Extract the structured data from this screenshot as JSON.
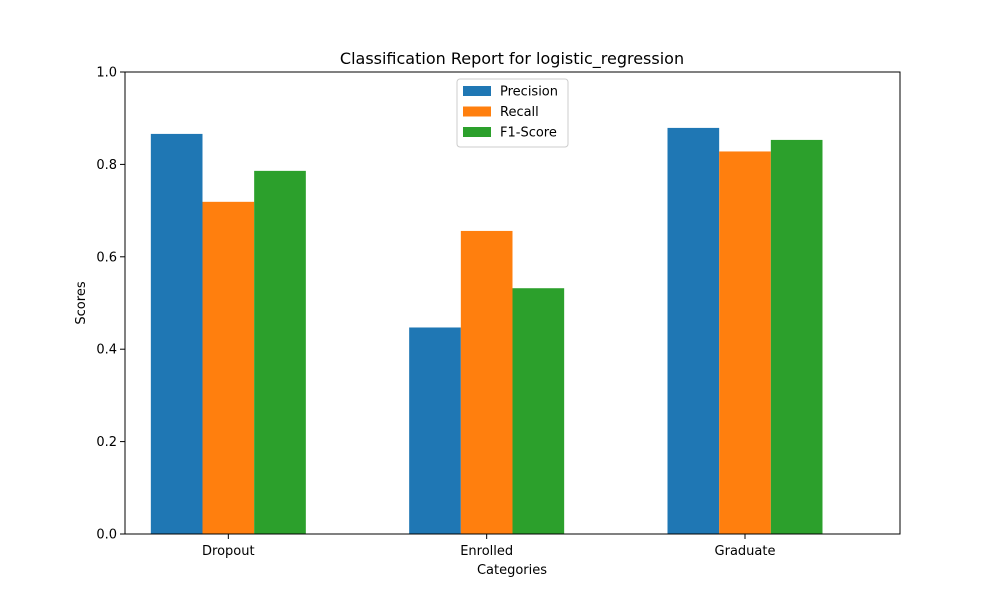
{
  "chart_data": {
    "type": "bar",
    "title": "Classification Report for logistic_regression",
    "xlabel": "Categories",
    "ylabel": "Scores",
    "categories": [
      "Dropout",
      "Enrolled",
      "Graduate"
    ],
    "series": [
      {
        "name": "Precision",
        "color": "#1f77b4",
        "values": [
          0.866,
          0.447,
          0.879
        ]
      },
      {
        "name": "Recall",
        "color": "#ff7f0e",
        "values": [
          0.719,
          0.656,
          0.828
        ]
      },
      {
        "name": "F1-Score",
        "color": "#2ca02c",
        "values": [
          0.786,
          0.532,
          0.853
        ]
      }
    ],
    "ylim": [
      0,
      1.0
    ],
    "yticks": [
      "0.0",
      "0.2",
      "0.4",
      "0.6",
      "0.8",
      "1.0"
    ],
    "grid": false,
    "legend_position": "top-center"
  }
}
